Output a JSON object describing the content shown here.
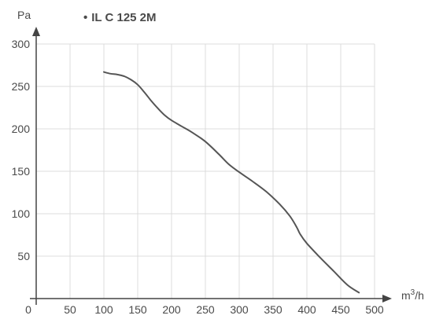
{
  "chart_data": {
    "type": "line",
    "ylabel": "Pa",
    "xlabel_base": "m",
    "xlabel_sup": "3",
    "xlabel_tail": "/h",
    "x_ticks": [
      0,
      50,
      100,
      150,
      200,
      250,
      300,
      350,
      400,
      450,
      500
    ],
    "y_ticks": [
      50,
      100,
      150,
      200,
      250,
      300
    ],
    "xlim": [
      0,
      500
    ],
    "ylim": [
      0,
      300
    ],
    "grid": true,
    "legend_position": "top-left",
    "legend_marker": "•",
    "series": [
      {
        "name": "IL C 125 2M",
        "color": "#555555",
        "x": [
          100,
          110,
          120,
          130,
          140,
          150,
          160,
          170,
          180,
          190,
          200,
          215,
          230,
          250,
          270,
          285,
          300,
          320,
          340,
          360,
          375,
          385,
          390,
          400,
          420,
          440,
          460,
          477
        ],
        "y": [
          267,
          265,
          264,
          262,
          258,
          252,
          243,
          233,
          224,
          216,
          210,
          203,
          196,
          185,
          170,
          158,
          149,
          138,
          126,
          111,
          97,
          84,
          76,
          65,
          48,
          32,
          16,
          7
        ]
      }
    ]
  }
}
